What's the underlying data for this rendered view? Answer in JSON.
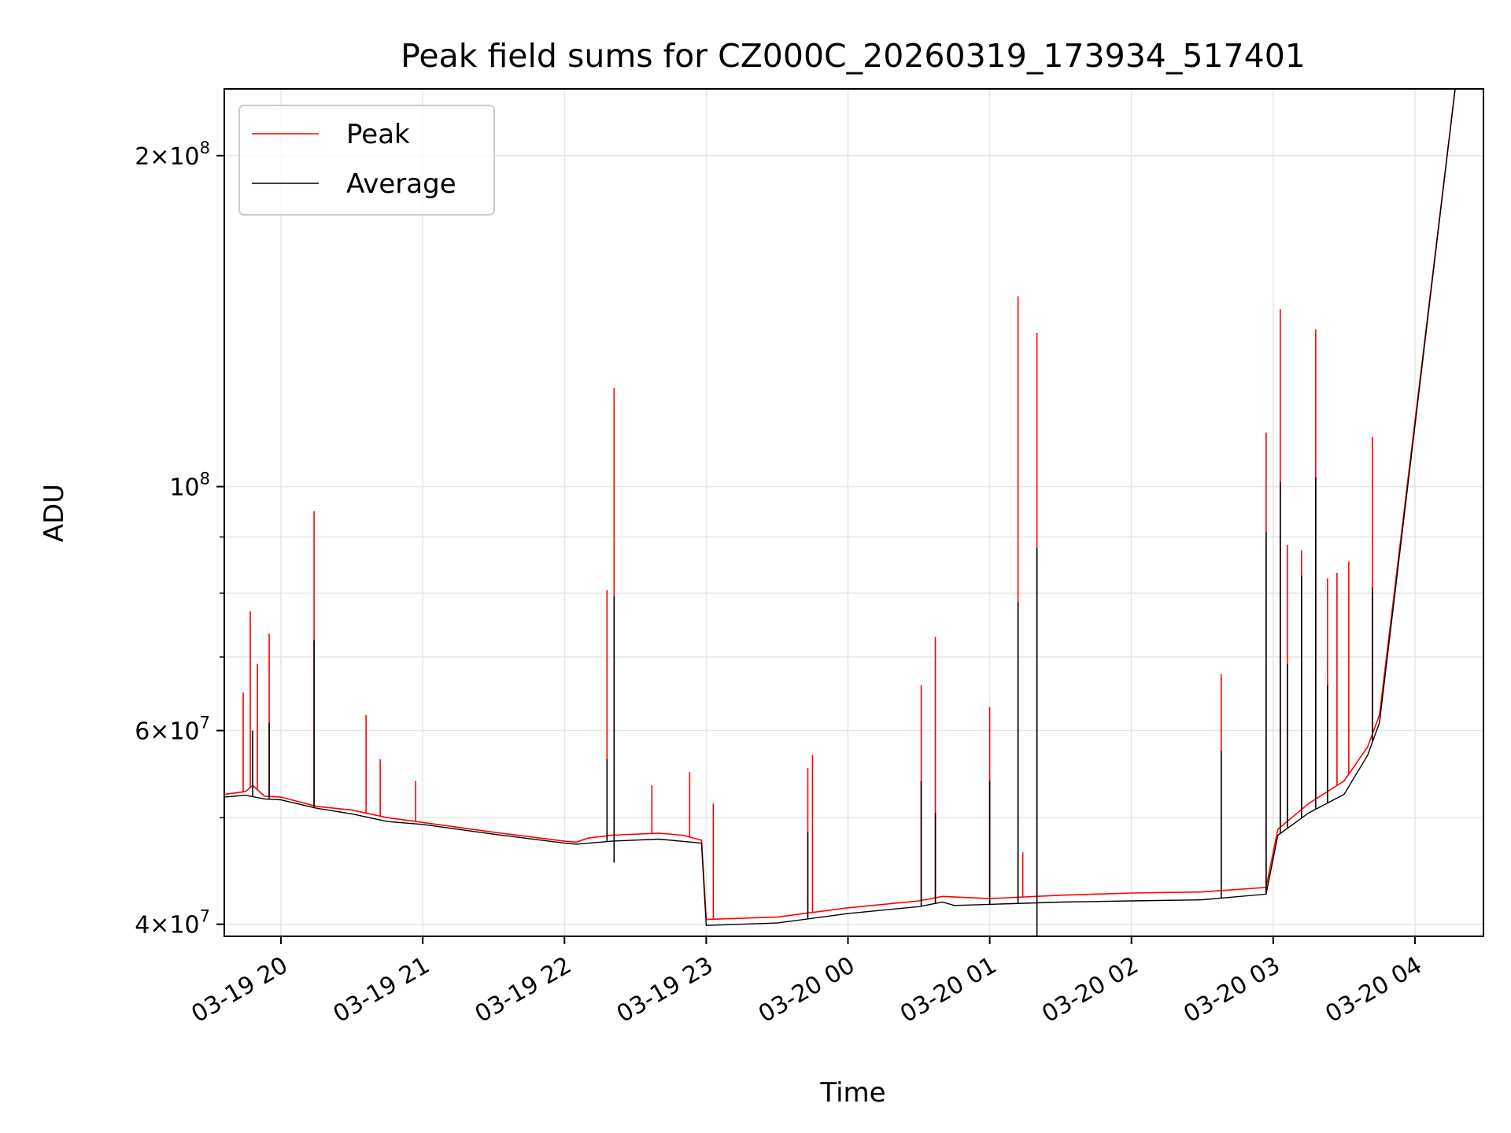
{
  "chart_data": {
    "type": "line",
    "title": "Peak field sums for CZ000C_20260319_173934_517401",
    "xlabel": "Time",
    "ylabel": "ADU",
    "yscale": "log",
    "ylim": [
      39000000,
      230000000
    ],
    "xlim": [
      "2026-03-19T19:36",
      "2026-03-20T04:29"
    ],
    "grid": true,
    "legend_position": "top-left",
    "x_ticks": [
      {
        "t": "2026-03-19T20:00",
        "label": "03-19 20"
      },
      {
        "t": "2026-03-19T21:00",
        "label": "03-19 21"
      },
      {
        "t": "2026-03-19T22:00",
        "label": "03-19 22"
      },
      {
        "t": "2026-03-19T23:00",
        "label": "03-19 23"
      },
      {
        "t": "2026-03-20T00:00",
        "label": "03-20 00"
      },
      {
        "t": "2026-03-20T01:00",
        "label": "03-20 01"
      },
      {
        "t": "2026-03-20T02:00",
        "label": "03-20 02"
      },
      {
        "t": "2026-03-20T03:00",
        "label": "03-20 03"
      },
      {
        "t": "2026-03-20T04:00",
        "label": "03-20 04"
      }
    ],
    "y_ticks": [
      {
        "value": 40000000,
        "base": "4",
        "exp": "7"
      },
      {
        "value": 60000000,
        "base": "6",
        "exp": "7"
      },
      {
        "value": 100000000,
        "base": "",
        "exp": "8"
      },
      {
        "value": 200000000,
        "base": "2",
        "exp": "8"
      }
    ],
    "y_minor_ticks": [
      50000000,
      70000000,
      80000000,
      90000000
    ],
    "series": [
      {
        "name": "Peak",
        "color": "#ff0000",
        "points": [
          [
            "2026-03-19T19:36",
            52500000
          ],
          [
            "2026-03-19T19:45",
            52800000
          ],
          [
            "2026-03-19T19:48",
            53500000
          ],
          [
            "2026-03-19T19:53",
            52300000
          ],
          [
            "2026-03-19T20:00",
            52200000
          ],
          [
            "2026-03-19T20:15",
            51200000
          ],
          [
            "2026-03-19T20:30",
            50800000
          ],
          [
            "2026-03-19T20:45",
            50000000
          ],
          [
            "2026-03-19T21:00",
            49500000
          ],
          [
            "2026-03-19T21:30",
            48500000
          ],
          [
            "2026-03-19T22:00",
            47600000
          ],
          [
            "2026-03-19T22:05",
            47500000
          ],
          [
            "2026-03-19T22:10",
            47900000
          ],
          [
            "2026-03-19T22:20",
            48200000
          ],
          [
            "2026-03-19T22:40",
            48400000
          ],
          [
            "2026-03-19T22:50",
            48200000
          ],
          [
            "2026-03-19T22:58",
            47700000
          ],
          [
            "2026-03-19T23:00",
            40400000
          ],
          [
            "2026-03-19T23:30",
            40600000
          ],
          [
            "2026-03-20T00:00",
            41400000
          ],
          [
            "2026-03-20T00:30",
            42000000
          ],
          [
            "2026-03-20T00:40",
            42400000
          ],
          [
            "2026-03-20T01:00",
            42200000
          ],
          [
            "2026-03-20T01:30",
            42500000
          ],
          [
            "2026-03-20T02:00",
            42700000
          ],
          [
            "2026-03-20T02:30",
            42800000
          ],
          [
            "2026-03-20T02:57",
            43200000
          ],
          [
            "2026-03-20T03:02",
            48800000
          ],
          [
            "2026-03-20T03:15",
            51500000
          ],
          [
            "2026-03-20T03:30",
            54000000
          ],
          [
            "2026-03-20T03:40",
            58000000
          ],
          [
            "2026-03-20T03:45",
            62000000
          ],
          [
            "2026-03-20T04:17",
            230000000
          ]
        ],
        "spikes": [
          [
            "2026-03-19T19:44",
            65000000
          ],
          [
            "2026-03-19T19:47",
            77000000
          ],
          [
            "2026-03-19T19:50",
            69000000
          ],
          [
            "2026-03-19T19:55",
            73500000
          ],
          [
            "2026-03-19T20:14",
            95000000
          ],
          [
            "2026-03-19T20:36",
            62000000
          ],
          [
            "2026-03-19T20:42",
            56500000
          ],
          [
            "2026-03-19T20:57",
            54000000
          ],
          [
            "2026-03-19T22:18",
            80500000
          ],
          [
            "2026-03-19T22:21",
            123000000
          ],
          [
            "2026-03-19T22:37",
            53500000
          ],
          [
            "2026-03-19T22:53",
            55000000
          ],
          [
            "2026-03-19T23:03",
            51500000
          ],
          [
            "2026-03-19T23:43",
            55500000
          ],
          [
            "2026-03-19T23:45",
            57000000
          ],
          [
            "2026-03-20T00:31",
            66000000
          ],
          [
            "2026-03-20T00:37",
            73000000
          ],
          [
            "2026-03-20T01:00",
            63000000
          ],
          [
            "2026-03-20T01:12",
            149000000
          ],
          [
            "2026-03-20T01:14",
            46500000
          ],
          [
            "2026-03-20T01:20",
            138000000
          ],
          [
            "2026-03-20T02:38",
            67500000
          ],
          [
            "2026-03-20T02:57",
            112000000
          ],
          [
            "2026-03-20T03:03",
            145000000
          ],
          [
            "2026-03-20T03:06",
            88500000
          ],
          [
            "2026-03-20T03:12",
            87500000
          ],
          [
            "2026-03-20T03:18",
            139000000
          ],
          [
            "2026-03-20T03:23",
            82500000
          ],
          [
            "2026-03-20T03:27",
            83500000
          ],
          [
            "2026-03-20T03:32",
            85500000
          ],
          [
            "2026-03-20T03:42",
            111000000
          ]
        ]
      },
      {
        "name": "Average",
        "color": "#000000",
        "points": [
          [
            "2026-03-19T19:36",
            52200000
          ],
          [
            "2026-03-19T19:45",
            52400000
          ],
          [
            "2026-03-19T19:53",
            52000000
          ],
          [
            "2026-03-19T20:00",
            51900000
          ],
          [
            "2026-03-19T20:15",
            51000000
          ],
          [
            "2026-03-19T20:30",
            50400000
          ],
          [
            "2026-03-19T20:45",
            49600000
          ],
          [
            "2026-03-19T21:00",
            49300000
          ],
          [
            "2026-03-19T21:30",
            48300000
          ],
          [
            "2026-03-19T22:00",
            47400000
          ],
          [
            "2026-03-19T22:05",
            47300000
          ],
          [
            "2026-03-19T22:20",
            47600000
          ],
          [
            "2026-03-19T22:40",
            47800000
          ],
          [
            "2026-03-19T22:58",
            47400000
          ],
          [
            "2026-03-19T23:00",
            39900000
          ],
          [
            "2026-03-19T23:30",
            40100000
          ],
          [
            "2026-03-20T00:00",
            40900000
          ],
          [
            "2026-03-20T00:30",
            41500000
          ],
          [
            "2026-03-20T00:40",
            41900000
          ],
          [
            "2026-03-20T00:45",
            41600000
          ],
          [
            "2026-03-20T01:00",
            41700000
          ],
          [
            "2026-03-20T01:30",
            41900000
          ],
          [
            "2026-03-20T02:00",
            42000000
          ],
          [
            "2026-03-20T02:30",
            42100000
          ],
          [
            "2026-03-20T02:57",
            42600000
          ],
          [
            "2026-03-20T03:02",
            48200000
          ],
          [
            "2026-03-20T03:15",
            50500000
          ],
          [
            "2026-03-20T03:30",
            52500000
          ],
          [
            "2026-03-20T03:40",
            57000000
          ],
          [
            "2026-03-20T03:45",
            61000000
          ],
          [
            "2026-03-20T04:17",
            230000000
          ]
        ],
        "spikes": [
          [
            "2026-03-19T19:48",
            60000000
          ],
          [
            "2026-03-19T19:55",
            61000000
          ],
          [
            "2026-03-19T20:14",
            72500000
          ],
          [
            "2026-03-19T22:18",
            56500000
          ],
          [
            "2026-03-19T22:21",
            79500000
          ],
          [
            "2026-03-19T23:43",
            48500000
          ],
          [
            "2026-03-20T00:31",
            54000000
          ],
          [
            "2026-03-20T00:37",
            50500000
          ],
          [
            "2026-03-20T01:00",
            54000000
          ],
          [
            "2026-03-20T01:12",
            78500000
          ],
          [
            "2026-03-20T01:20",
            88000000
          ],
          [
            "2026-03-20T02:38",
            57500000
          ],
          [
            "2026-03-20T02:57",
            91000000
          ],
          [
            "2026-03-20T03:03",
            101000000
          ],
          [
            "2026-03-20T03:06",
            69000000
          ],
          [
            "2026-03-20T03:12",
            83000000
          ],
          [
            "2026-03-20T03:18",
            102000000
          ],
          [
            "2026-03-20T03:23",
            66000000
          ],
          [
            "2026-03-20T03:42",
            81000000
          ]
        ],
        "dips": [
          [
            "2026-03-19T22:21",
            45500000
          ],
          [
            "2026-03-20T01:20",
            39000000
          ]
        ]
      }
    ]
  }
}
